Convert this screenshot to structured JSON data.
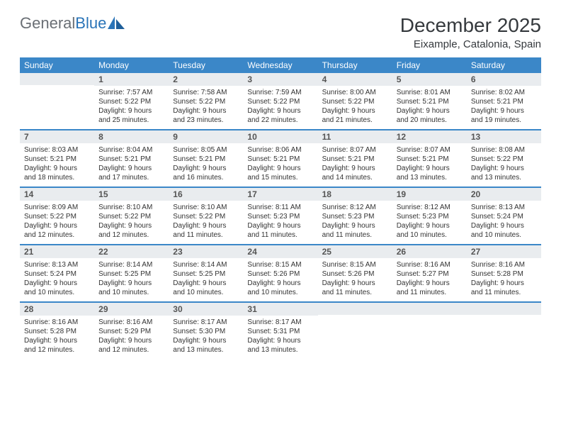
{
  "logo": {
    "word1": "General",
    "word2": "Blue"
  },
  "title": "December 2025",
  "location": "Eixample, Catalonia, Spain",
  "colors": {
    "header_bg": "#3b87c8",
    "header_text": "#ffffff",
    "daynum_bg": "#e9ecef",
    "week_border": "#3b87c8",
    "logo_gray": "#6a6f75",
    "logo_blue": "#2a74b8"
  },
  "day_headers": [
    "Sunday",
    "Monday",
    "Tuesday",
    "Wednesday",
    "Thursday",
    "Friday",
    "Saturday"
  ],
  "weeks": [
    [
      {
        "num": "",
        "sunrise": "",
        "sunset": "",
        "daylight": ""
      },
      {
        "num": "1",
        "sunrise": "Sunrise: 7:57 AM",
        "sunset": "Sunset: 5:22 PM",
        "daylight": "Daylight: 9 hours and 25 minutes."
      },
      {
        "num": "2",
        "sunrise": "Sunrise: 7:58 AM",
        "sunset": "Sunset: 5:22 PM",
        "daylight": "Daylight: 9 hours and 23 minutes."
      },
      {
        "num": "3",
        "sunrise": "Sunrise: 7:59 AM",
        "sunset": "Sunset: 5:22 PM",
        "daylight": "Daylight: 9 hours and 22 minutes."
      },
      {
        "num": "4",
        "sunrise": "Sunrise: 8:00 AM",
        "sunset": "Sunset: 5:22 PM",
        "daylight": "Daylight: 9 hours and 21 minutes."
      },
      {
        "num": "5",
        "sunrise": "Sunrise: 8:01 AM",
        "sunset": "Sunset: 5:21 PM",
        "daylight": "Daylight: 9 hours and 20 minutes."
      },
      {
        "num": "6",
        "sunrise": "Sunrise: 8:02 AM",
        "sunset": "Sunset: 5:21 PM",
        "daylight": "Daylight: 9 hours and 19 minutes."
      }
    ],
    [
      {
        "num": "7",
        "sunrise": "Sunrise: 8:03 AM",
        "sunset": "Sunset: 5:21 PM",
        "daylight": "Daylight: 9 hours and 18 minutes."
      },
      {
        "num": "8",
        "sunrise": "Sunrise: 8:04 AM",
        "sunset": "Sunset: 5:21 PM",
        "daylight": "Daylight: 9 hours and 17 minutes."
      },
      {
        "num": "9",
        "sunrise": "Sunrise: 8:05 AM",
        "sunset": "Sunset: 5:21 PM",
        "daylight": "Daylight: 9 hours and 16 minutes."
      },
      {
        "num": "10",
        "sunrise": "Sunrise: 8:06 AM",
        "sunset": "Sunset: 5:21 PM",
        "daylight": "Daylight: 9 hours and 15 minutes."
      },
      {
        "num": "11",
        "sunrise": "Sunrise: 8:07 AM",
        "sunset": "Sunset: 5:21 PM",
        "daylight": "Daylight: 9 hours and 14 minutes."
      },
      {
        "num": "12",
        "sunrise": "Sunrise: 8:07 AM",
        "sunset": "Sunset: 5:21 PM",
        "daylight": "Daylight: 9 hours and 13 minutes."
      },
      {
        "num": "13",
        "sunrise": "Sunrise: 8:08 AM",
        "sunset": "Sunset: 5:22 PM",
        "daylight": "Daylight: 9 hours and 13 minutes."
      }
    ],
    [
      {
        "num": "14",
        "sunrise": "Sunrise: 8:09 AM",
        "sunset": "Sunset: 5:22 PM",
        "daylight": "Daylight: 9 hours and 12 minutes."
      },
      {
        "num": "15",
        "sunrise": "Sunrise: 8:10 AM",
        "sunset": "Sunset: 5:22 PM",
        "daylight": "Daylight: 9 hours and 12 minutes."
      },
      {
        "num": "16",
        "sunrise": "Sunrise: 8:10 AM",
        "sunset": "Sunset: 5:22 PM",
        "daylight": "Daylight: 9 hours and 11 minutes."
      },
      {
        "num": "17",
        "sunrise": "Sunrise: 8:11 AM",
        "sunset": "Sunset: 5:23 PM",
        "daylight": "Daylight: 9 hours and 11 minutes."
      },
      {
        "num": "18",
        "sunrise": "Sunrise: 8:12 AM",
        "sunset": "Sunset: 5:23 PM",
        "daylight": "Daylight: 9 hours and 11 minutes."
      },
      {
        "num": "19",
        "sunrise": "Sunrise: 8:12 AM",
        "sunset": "Sunset: 5:23 PM",
        "daylight": "Daylight: 9 hours and 10 minutes."
      },
      {
        "num": "20",
        "sunrise": "Sunrise: 8:13 AM",
        "sunset": "Sunset: 5:24 PM",
        "daylight": "Daylight: 9 hours and 10 minutes."
      }
    ],
    [
      {
        "num": "21",
        "sunrise": "Sunrise: 8:13 AM",
        "sunset": "Sunset: 5:24 PM",
        "daylight": "Daylight: 9 hours and 10 minutes."
      },
      {
        "num": "22",
        "sunrise": "Sunrise: 8:14 AM",
        "sunset": "Sunset: 5:25 PM",
        "daylight": "Daylight: 9 hours and 10 minutes."
      },
      {
        "num": "23",
        "sunrise": "Sunrise: 8:14 AM",
        "sunset": "Sunset: 5:25 PM",
        "daylight": "Daylight: 9 hours and 10 minutes."
      },
      {
        "num": "24",
        "sunrise": "Sunrise: 8:15 AM",
        "sunset": "Sunset: 5:26 PM",
        "daylight": "Daylight: 9 hours and 10 minutes."
      },
      {
        "num": "25",
        "sunrise": "Sunrise: 8:15 AM",
        "sunset": "Sunset: 5:26 PM",
        "daylight": "Daylight: 9 hours and 11 minutes."
      },
      {
        "num": "26",
        "sunrise": "Sunrise: 8:16 AM",
        "sunset": "Sunset: 5:27 PM",
        "daylight": "Daylight: 9 hours and 11 minutes."
      },
      {
        "num": "27",
        "sunrise": "Sunrise: 8:16 AM",
        "sunset": "Sunset: 5:28 PM",
        "daylight": "Daylight: 9 hours and 11 minutes."
      }
    ],
    [
      {
        "num": "28",
        "sunrise": "Sunrise: 8:16 AM",
        "sunset": "Sunset: 5:28 PM",
        "daylight": "Daylight: 9 hours and 12 minutes."
      },
      {
        "num": "29",
        "sunrise": "Sunrise: 8:16 AM",
        "sunset": "Sunset: 5:29 PM",
        "daylight": "Daylight: 9 hours and 12 minutes."
      },
      {
        "num": "30",
        "sunrise": "Sunrise: 8:17 AM",
        "sunset": "Sunset: 5:30 PM",
        "daylight": "Daylight: 9 hours and 13 minutes."
      },
      {
        "num": "31",
        "sunrise": "Sunrise: 8:17 AM",
        "sunset": "Sunset: 5:31 PM",
        "daylight": "Daylight: 9 hours and 13 minutes."
      },
      {
        "num": "",
        "sunrise": "",
        "sunset": "",
        "daylight": ""
      },
      {
        "num": "",
        "sunrise": "",
        "sunset": "",
        "daylight": ""
      },
      {
        "num": "",
        "sunrise": "",
        "sunset": "",
        "daylight": ""
      }
    ]
  ]
}
